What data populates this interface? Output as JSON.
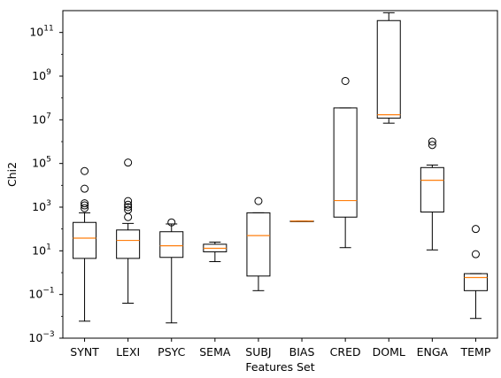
{
  "chart_data": {
    "type": "boxplot",
    "title": "",
    "xlabel": "Features Set",
    "ylabel": "Chi2",
    "yscale": "log",
    "ylim": [
      0.001,
      1000000000000
    ],
    "y_ticks": [
      {
        "value": 0.001,
        "base": "10",
        "exp": "−3"
      },
      {
        "value": 0.1,
        "base": "10",
        "exp": "−1"
      },
      {
        "value": 10,
        "base": "10",
        "exp": "1"
      },
      {
        "value": 1000,
        "base": "10",
        "exp": "3"
      },
      {
        "value": 100000,
        "base": "10",
        "exp": "5"
      },
      {
        "value": 10000000,
        "base": "10",
        "exp": "7"
      },
      {
        "value": 1000000000,
        "base": "10",
        "exp": "9"
      },
      {
        "value": 100000000000,
        "base": "10",
        "exp": "11"
      }
    ],
    "grid": false,
    "colors": {
      "box": "#000000",
      "median": "#ff7f0e",
      "flier": "#000000"
    },
    "categories": [
      "SYNT",
      "LEXI",
      "PSYC",
      "SEMA",
      "SUBJ",
      "BIAS",
      "CRED",
      "DOML",
      "ENGA",
      "TEMP"
    ],
    "boxes": [
      {
        "label": "SYNT",
        "whislo": 0.006,
        "q1": 4.5,
        "med": 38,
        "q3": 200,
        "whishi": 550,
        "fliers": [
          900,
          1200,
          1500,
          7000,
          45000
        ]
      },
      {
        "label": "LEXI",
        "whislo": 0.04,
        "q1": 4.5,
        "med": 30,
        "q3": 90,
        "whishi": 180,
        "fliers": [
          350,
          750,
          1000,
          1300,
          1900,
          110000
        ]
      },
      {
        "label": "PSYC",
        "whislo": 0.005,
        "q1": 5,
        "med": 17,
        "q3": 75,
        "whishi": 170,
        "fliers": [
          200
        ]
      },
      {
        "label": "SEMA",
        "whislo": 3.2,
        "q1": 9,
        "med": 13,
        "q3": 20,
        "whishi": 25,
        "fliers": []
      },
      {
        "label": "SUBJ",
        "whislo": 0.15,
        "q1": 0.7,
        "med": 50,
        "q3": 550,
        "whishi": 550,
        "fliers": [
          1900
        ]
      },
      {
        "label": "BIAS",
        "whislo": 230,
        "q1": 230,
        "med": 230,
        "q3": 230,
        "whishi": 230,
        "fliers": []
      },
      {
        "label": "CRED",
        "whislo": 14,
        "q1": 350,
        "med": 2000,
        "q3": 35000000,
        "whishi": 35000000,
        "fliers": [
          600000000
        ]
      },
      {
        "label": "DOML",
        "whislo": 7000000,
        "q1": 12000000,
        "med": 17000000,
        "q3": 350000000000,
        "whishi": 800000000000,
        "fliers": []
      },
      {
        "label": "ENGA",
        "whislo": 11,
        "q1": 600,
        "med": 17000,
        "q3": 65000,
        "whishi": 85000,
        "fliers": [
          700000,
          1000000
        ]
      },
      {
        "label": "TEMP",
        "whislo": 0.008,
        "q1": 0.15,
        "med": 0.6,
        "q3": 0.9,
        "whishi": 0.9,
        "fliers": [
          7,
          100
        ]
      }
    ]
  }
}
